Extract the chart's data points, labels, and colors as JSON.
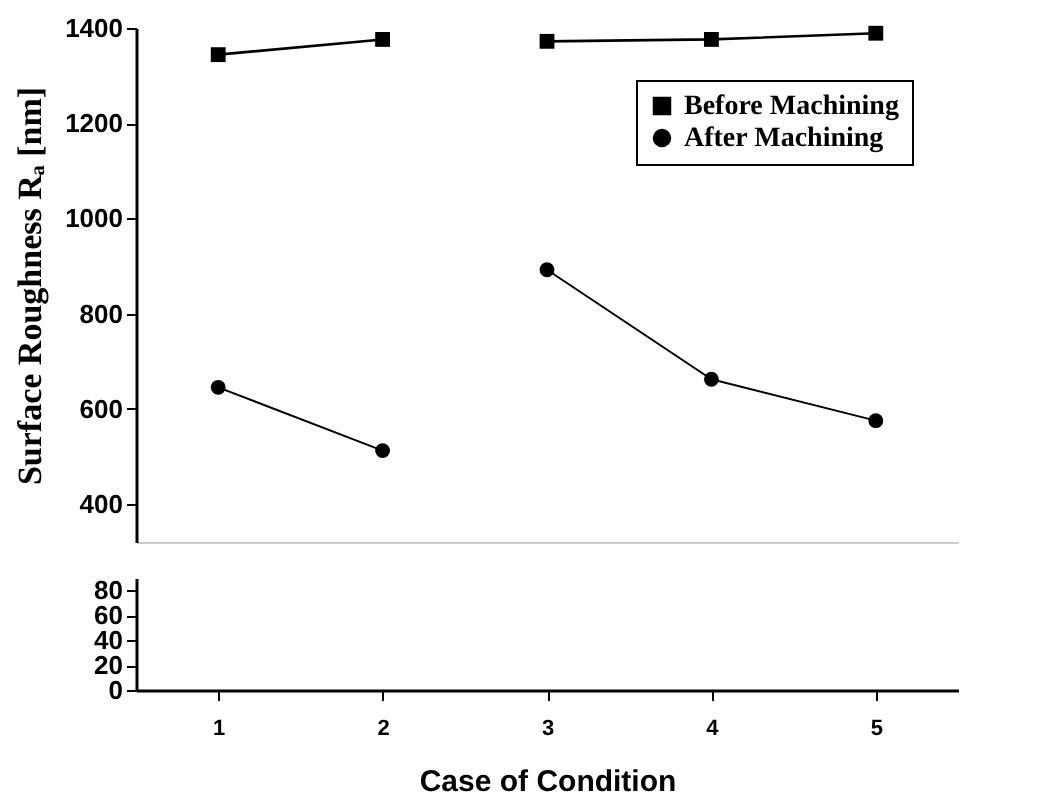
{
  "chart_data": [
    {
      "type": "line",
      "ylabel": "Surface Roughness Rₐ [nm]",
      "xlim": [
        0.5,
        5.5
      ],
      "xticks": [
        1,
        2,
        3,
        4,
        5
      ],
      "ylim": [
        320,
        1400
      ],
      "yticks": [
        400,
        600,
        800,
        1000,
        1200,
        1400
      ],
      "tick_labels": "y",
      "legend": "top right",
      "grid": false,
      "series": [
        {
          "name": "Before Machining",
          "color": "#000000",
          "marker": "square",
          "line_style": "solid",
          "x": [
            1,
            2,
            2.5,
            3,
            4,
            5
          ],
          "values": [
            1344,
            1376,
            null,
            1372,
            1376,
            1389
          ]
        },
        {
          "name": "After Machining",
          "color": "#000000",
          "marker": "circle",
          "line_style": "solid",
          "x": [
            1,
            2,
            2.5,
            3,
            4,
            5
          ],
          "values": [
            645,
            512,
            null,
            892,
            662,
            575
          ]
        }
      ]
    },
    {
      "type": "line",
      "xlabel": "Case of Condition",
      "xlim": [
        0.5,
        5.5
      ],
      "xticks": [
        1,
        2,
        3,
        4,
        5
      ],
      "ylim": [
        0,
        90
      ],
      "yticks": [
        0,
        20,
        40,
        60,
        80
      ],
      "grid": false
    }
  ]
}
